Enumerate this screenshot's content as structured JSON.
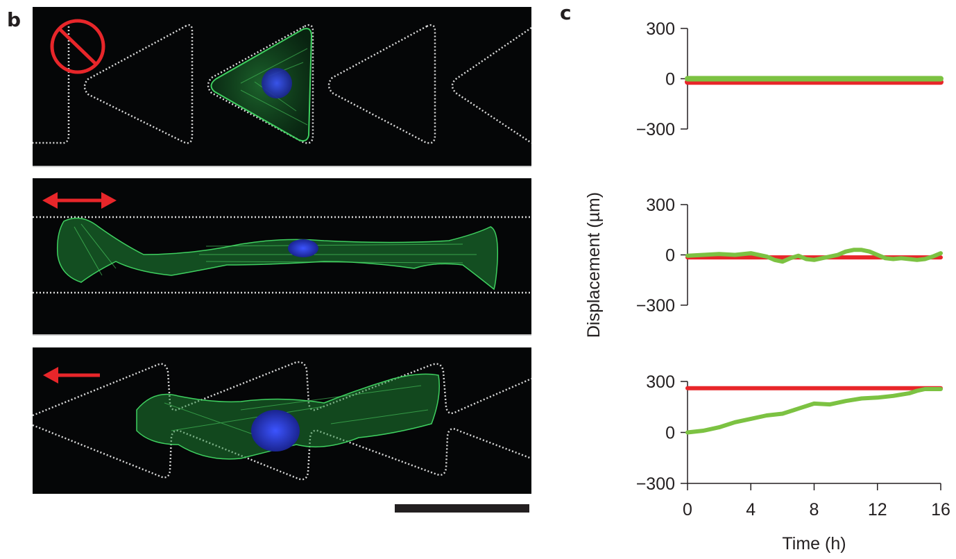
{
  "panels": {
    "b_label": "b",
    "c_label": "c"
  },
  "microscopy": {
    "images": [
      {
        "pattern": "triangles",
        "direction_symbol": "prohibited",
        "symbol_color": "#e8262a"
      },
      {
        "pattern": "straight lines",
        "direction_symbol": "double-headed arrow",
        "symbol_color": "#e8262a"
      },
      {
        "pattern": "connected triangles",
        "direction_symbol": "left arrow",
        "symbol_color": "#e8262a"
      }
    ],
    "stain_colors": {
      "actin": "#2fb04a",
      "nucleus": "#2a3fd0",
      "pattern_outline": "#d8d8d8"
    }
  },
  "chart_data": [
    {
      "type": "line",
      "x": [
        0,
        16
      ],
      "xlim": [
        0,
        16
      ],
      "ylim": [
        -300,
        300
      ],
      "yticks": [
        300,
        0,
        -300
      ],
      "series": [
        {
          "color": "#e8262a",
          "values": [
            -20,
            -20
          ]
        },
        {
          "color": "#7cc242",
          "values": [
            0,
            0
          ]
        }
      ]
    },
    {
      "type": "line",
      "x": [
        0,
        1,
        2,
        3,
        4,
        5,
        5.5,
        6,
        6.5,
        7,
        7.5,
        8,
        8.5,
        9,
        9.5,
        10,
        10.5,
        11,
        11.5,
        12,
        12.5,
        13,
        13.5,
        14,
        14.5,
        15,
        15.5,
        16
      ],
      "xlim": [
        0,
        16
      ],
      "ylim": [
        -300,
        300
      ],
      "yticks": [
        300,
        0,
        -300
      ],
      "series": [
        {
          "color": "#e8262a",
          "values": [
            -15,
            -15,
            -15,
            -15,
            -15,
            -15,
            -15,
            -15,
            -15,
            -15,
            -15,
            -15,
            -15,
            -15,
            -15,
            -15,
            -15,
            -15,
            -15,
            -15,
            -15,
            -15,
            -15,
            -15,
            -15,
            -15,
            -15,
            -15
          ]
        },
        {
          "color": "#7cc242",
          "values": [
            -5,
            0,
            5,
            0,
            10,
            -10,
            -30,
            -40,
            -20,
            -5,
            -25,
            -30,
            -20,
            -10,
            0,
            20,
            30,
            30,
            20,
            0,
            -20,
            -25,
            -20,
            -25,
            -30,
            -25,
            -10,
            10
          ]
        }
      ]
    },
    {
      "type": "line",
      "x": [
        0,
        1,
        2,
        3,
        4,
        5,
        6,
        7,
        8,
        9,
        10,
        11,
        12,
        13,
        14,
        14.5,
        15,
        15.5,
        16
      ],
      "xlim": [
        0,
        16
      ],
      "ylim": [
        -300,
        300
      ],
      "yticks": [
        300,
        0,
        -300
      ],
      "xticks": [
        0,
        4,
        8,
        12,
        16
      ],
      "xlabel": "Time (h)",
      "series": [
        {
          "color": "#e8262a",
          "values": [
            260,
            260,
            260,
            260,
            260,
            260,
            260,
            260,
            260,
            260,
            260,
            260,
            260,
            260,
            260,
            260,
            260,
            260,
            260
          ]
        },
        {
          "color": "#7cc242",
          "values": [
            0,
            10,
            30,
            60,
            80,
            100,
            110,
            140,
            170,
            165,
            185,
            200,
            205,
            215,
            230,
            245,
            255,
            255,
            255
          ]
        }
      ]
    }
  ],
  "shared_ylabel": "Displacement (µm)"
}
